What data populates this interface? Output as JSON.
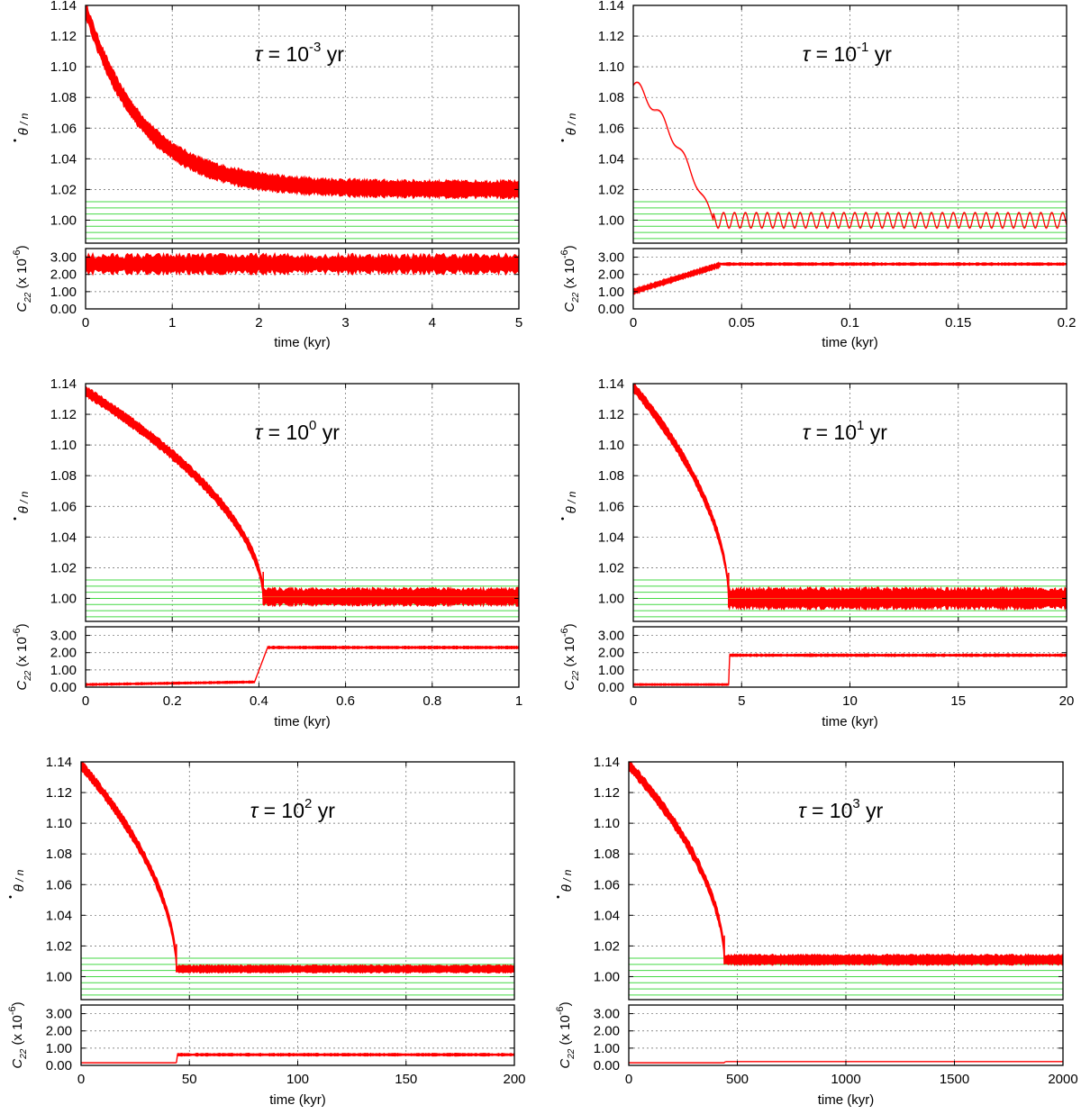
{
  "figure": {
    "line_color": "#ff0000",
    "green_line_color": "#44d944",
    "top_ylabel_main": "θ",
    "top_ylabel_dot": "•",
    "top_ylabel_rest": "/ n",
    "bottom_ylabel_c": "C",
    "bottom_ylabel_sub": "22",
    "bottom_ylabel_rest": " (x 10",
    "bottom_ylabel_exp": "-6",
    "bottom_ylabel_close": ")",
    "tau_symbol": "τ",
    "tau_equals": " = 10",
    "tau_unit": " yr"
  },
  "chart_data": [
    {
      "type": "line",
      "tau_exponent": "-3",
      "xlabel": "time (kyr)",
      "xlim": [
        0,
        5
      ],
      "xticks": [
        "0",
        "1",
        "2",
        "3",
        "4",
        "5"
      ],
      "top": {
        "ylabel": "θ̇ / n",
        "ylim": [
          0.985,
          1.14
        ],
        "yticks": [
          "1.00",
          "1.02",
          "1.04",
          "1.06",
          "1.08",
          "1.10",
          "1.12",
          "1.14"
        ],
        "model": "exp",
        "start": 1.138,
        "end": 1.02,
        "decay_scale": 0.65,
        "band": 0.005,
        "x": [
          0,
          0.5,
          1,
          1.5,
          2,
          2.5,
          3,
          3.5,
          4,
          4.5,
          5
        ],
        "y": [
          1.138,
          1.073,
          1.047,
          1.032,
          1.026,
          1.022,
          1.021,
          1.02,
          1.02,
          1.02,
          1.02
        ]
      },
      "bottom": {
        "ylabel": "C22 (x 10^-6)",
        "ylim": [
          0,
          3.5
        ],
        "yticks": [
          "0.00",
          "1.00",
          "2.00",
          "3.00"
        ],
        "segments": [
          {
            "x0": 0,
            "x1": 5,
            "y0": 2.6,
            "y1": 2.6,
            "noise": 0.45
          }
        ]
      }
    },
    {
      "type": "line",
      "tau_exponent": "-1",
      "xlabel": "time (kyr)",
      "xlim": [
        0,
        0.2
      ],
      "xticks": [
        "0",
        "0.05",
        "0.1",
        "0.15",
        "0.2"
      ],
      "top": {
        "ylabel": "θ̇ / n",
        "ylim": [
          0.985,
          1.14
        ],
        "yticks": [
          "1.00",
          "1.02",
          "1.04",
          "1.06",
          "1.08",
          "1.10",
          "1.12",
          "1.14"
        ],
        "model": "wave",
        "start": 1.088,
        "capture_x": 0.037,
        "level": 1.0,
        "wave_amp": 0.005,
        "wave_period": 0.00505,
        "band": 0.0008,
        "x": [
          0,
          0.01,
          0.02,
          0.03,
          0.037,
          0.05,
          0.1,
          0.15,
          0.2
        ],
        "y": [
          1.088,
          1.073,
          1.05,
          1.02,
          1.0,
          1.0,
          1.0,
          1.0,
          1.0
        ]
      },
      "bottom": {
        "ylabel": "C22 (x 10^-6)",
        "ylim": [
          0,
          3.5
        ],
        "yticks": [
          "0.00",
          "1.00",
          "2.00",
          "3.00"
        ],
        "segments": [
          {
            "x0": 0,
            "x1": 0.04,
            "y0": 1.0,
            "y1": 2.55,
            "noise": 0.12
          },
          {
            "x0": 0.04,
            "x1": 0.2,
            "y0": 2.6,
            "y1": 2.6,
            "noise": 0.06
          }
        ]
      }
    },
    {
      "type": "line",
      "tau_exponent": "0",
      "xlabel": "time (kyr)",
      "xlim": [
        0,
        1
      ],
      "xticks": [
        "0",
        "0.2",
        "0.4",
        "0.6",
        "0.8",
        "1"
      ],
      "top": {
        "ylabel": "θ̇ / n",
        "ylim": [
          0.985,
          1.14
        ],
        "yticks": [
          "1.00",
          "1.02",
          "1.04",
          "1.06",
          "1.08",
          "1.10",
          "1.12",
          "1.14"
        ],
        "model": "capture",
        "start": 1.135,
        "capture_x": 0.41,
        "level": 1.001,
        "band": 0.005,
        "band_before": 0.003,
        "x": [
          0,
          0.1,
          0.2,
          0.3,
          0.4,
          0.41,
          0.6,
          0.8,
          1
        ],
        "y": [
          1.135,
          1.121,
          1.103,
          1.075,
          1.024,
          1.001,
          1.001,
          1.001,
          1.001
        ]
      },
      "bottom": {
        "ylabel": "C22 (x 10^-6)",
        "ylim": [
          0,
          3.5
        ],
        "yticks": [
          "0.00",
          "1.00",
          "2.00",
          "3.00"
        ],
        "segments": [
          {
            "x0": 0,
            "x1": 0.39,
            "y0": 0.15,
            "y1": 0.3,
            "noise": 0.05
          },
          {
            "x0": 0.39,
            "x1": 0.42,
            "y0": 0.3,
            "y1": 2.3,
            "noise": 0.0
          },
          {
            "x0": 0.42,
            "x1": 1,
            "y0": 2.3,
            "y1": 2.3,
            "noise": 0.06
          }
        ]
      }
    },
    {
      "type": "line",
      "tau_exponent": "1",
      "xlabel": "time (kyr)",
      "xlim": [
        0,
        20
      ],
      "xticks": [
        "0",
        "5",
        "10",
        "15",
        "20"
      ],
      "top": {
        "ylabel": "θ̇ / n",
        "ylim": [
          0.985,
          1.14
        ],
        "yticks": [
          "1.00",
          "1.02",
          "1.04",
          "1.06",
          "1.08",
          "1.10",
          "1.12",
          "1.14"
        ],
        "model": "capture",
        "start": 1.138,
        "capture_x": 4.4,
        "level": 1.0,
        "band": 0.006,
        "band_before": 0.003,
        "x": [
          0,
          1,
          2,
          3,
          4,
          4.4,
          10,
          15,
          20
        ],
        "y": [
          1.138,
          1.122,
          1.101,
          1.074,
          1.032,
          1.0,
          1.0,
          1.0,
          1.0
        ]
      },
      "bottom": {
        "ylabel": "C22 (x 10^-6)",
        "ylim": [
          0,
          3.5
        ],
        "yticks": [
          "0.00",
          "1.00",
          "2.00",
          "3.00"
        ],
        "segments": [
          {
            "x0": 0,
            "x1": 4.4,
            "y0": 0.15,
            "y1": 0.15,
            "noise": 0.04
          },
          {
            "x0": 4.4,
            "x1": 4.45,
            "y0": 0.15,
            "y1": 1.85,
            "noise": 0.0
          },
          {
            "x0": 4.45,
            "x1": 20,
            "y0": 1.85,
            "y1": 1.85,
            "noise": 0.06
          }
        ]
      }
    },
    {
      "type": "line",
      "tau_exponent": "2",
      "xlabel": "time (kyr)",
      "xlim": [
        0,
        200
      ],
      "xticks": [
        "0",
        "50",
        "100",
        "150",
        "200"
      ],
      "top": {
        "ylabel": "θ̇ / n",
        "ylim": [
          0.985,
          1.14
        ],
        "yticks": [
          "1.00",
          "1.02",
          "1.04",
          "1.06",
          "1.08",
          "1.10",
          "1.12",
          "1.14"
        ],
        "model": "capture",
        "start": 1.138,
        "capture_x": 44,
        "level": 1.005,
        "band": 0.0022,
        "band_before": 0.003,
        "x": [
          0,
          10,
          20,
          30,
          40,
          44,
          100,
          150,
          200
        ],
        "y": [
          1.138,
          1.122,
          1.101,
          1.074,
          1.032,
          1.005,
          1.005,
          1.005,
          1.005
        ]
      },
      "bottom": {
        "ylabel": "C22 (x 10^-6)",
        "ylim": [
          0,
          3.5
        ],
        "yticks": [
          "0.00",
          "1.00",
          "2.00",
          "3.00"
        ],
        "segments": [
          {
            "x0": 0,
            "x1": 44,
            "y0": 0.15,
            "y1": 0.15,
            "noise": 0.0
          },
          {
            "x0": 44,
            "x1": 44.5,
            "y0": 0.15,
            "y1": 0.62,
            "noise": 0.0
          },
          {
            "x0": 44.5,
            "x1": 200,
            "y0": 0.62,
            "y1": 0.62,
            "noise": 0.06
          }
        ]
      }
    },
    {
      "type": "line",
      "tau_exponent": "3",
      "xlabel": "time (kyr)",
      "xlim": [
        0,
        2000
      ],
      "xticks": [
        "0",
        "500",
        "1000",
        "1500",
        "2000"
      ],
      "top": {
        "ylabel": "θ̇ / n",
        "ylim": [
          0.985,
          1.14
        ],
        "yticks": [
          "1.00",
          "1.02",
          "1.04",
          "1.06",
          "1.08",
          "1.10",
          "1.12",
          "1.14"
        ],
        "model": "capture",
        "start": 1.138,
        "capture_x": 440,
        "level": 1.011,
        "band": 0.003,
        "band_before": 0.0032,
        "x": [
          0,
          100,
          200,
          300,
          400,
          440,
          1000,
          1500,
          2000
        ],
        "y": [
          1.138,
          1.122,
          1.101,
          1.074,
          1.032,
          1.011,
          1.011,
          1.011,
          1.011
        ]
      },
      "bottom": {
        "ylabel": "C22 (x 10^-6)",
        "ylim": [
          0,
          3.5
        ],
        "yticks": [
          "0.00",
          "1.00",
          "2.00",
          "3.00"
        ],
        "segments": [
          {
            "x0": 0,
            "x1": 440,
            "y0": 0.15,
            "y1": 0.15,
            "noise": 0.0
          },
          {
            "x0": 440,
            "x1": 445,
            "y0": 0.15,
            "y1": 0.22,
            "noise": 0.0
          },
          {
            "x0": 445,
            "x1": 2000,
            "y0": 0.22,
            "y1": 0.22,
            "noise": 0.0
          }
        ]
      }
    }
  ]
}
